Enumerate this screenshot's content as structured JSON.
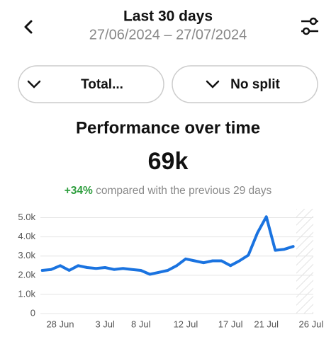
{
  "header": {
    "title": "Last 30 days",
    "subtitle": "27/06/2024 – 27/07/2024"
  },
  "buttons": [
    {
      "label": "Total..."
    },
    {
      "label": "No split"
    }
  ],
  "summary": {
    "value": "69k",
    "change": "+34%",
    "comparison": "compared with the previous 29 days"
  },
  "chart_data": {
    "type": "line",
    "title": "Performance over time",
    "categories": [
      null,
      null,
      "28 Jun",
      null,
      null,
      null,
      null,
      "3 Jul",
      null,
      null,
      null,
      "8 Jul",
      null,
      null,
      null,
      null,
      "12 Jul",
      null,
      null,
      null,
      null,
      "17 Jul",
      null,
      null,
      null,
      "21 Jul",
      null,
      null,
      null,
      null,
      "26 Jul"
    ],
    "series": [
      {
        "name": "Total",
        "color": "#1a73e0",
        "values": [
          2250,
          2300,
          2500,
          2250,
          2500,
          2400,
          2350,
          2400,
          2300,
          2350,
          2300,
          2250,
          2050,
          2150,
          2250,
          2500,
          2850,
          2750,
          2650,
          2750,
          2750,
          2500,
          2750,
          3050,
          4200,
          5050,
          3300,
          3350,
          3500,
          null,
          null
        ]
      }
    ],
    "ylim": [
      0,
      5500
    ],
    "yticks": [
      0,
      {
        "value": 1000,
        "label": "1.0k"
      },
      {
        "value": 2000,
        "label": "2.0k"
      },
      {
        "value": 3000,
        "label": "3.0k"
      },
      {
        "value": 4000,
        "label": "4.0k"
      },
      {
        "value": 5000,
        "label": "5.0k"
      }
    ],
    "grid": true
  }
}
